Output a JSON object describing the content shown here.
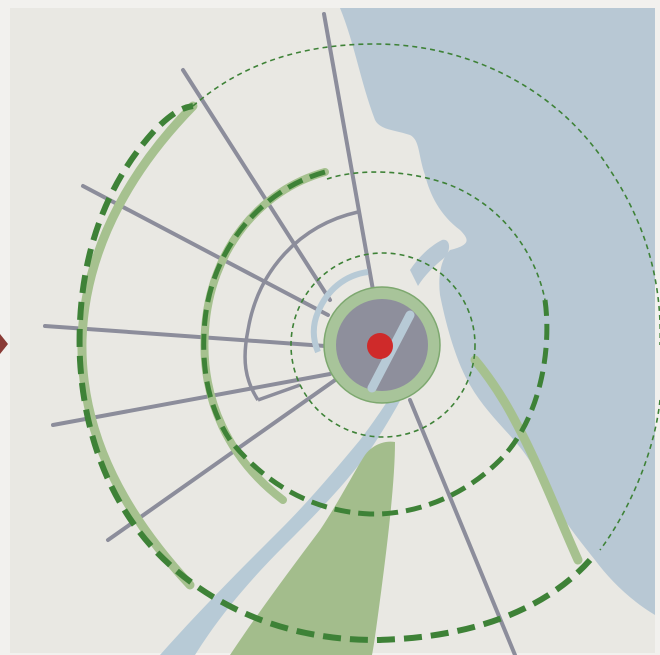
{
  "map": {
    "colors": {
      "background": "#e9e8e3",
      "frame": "#f2f1ee",
      "water": "#b8c8d4",
      "river": "#b7cad6",
      "park": "#a3bd8c",
      "road": "#8c8d9b",
      "ring_dashed": "#3e8237",
      "arc_light_green": "#a6c18f",
      "arc_dark_green": "#3e8237",
      "center_disk_outer": "#a8c49a",
      "center_disk_inner": "#8e8f9c",
      "center_dot": "#cf2a2a",
      "edge_marker": "#8a3b36"
    },
    "layers": [
      "coastline-water",
      "river",
      "park",
      "radial-roads",
      "concentric-ring-roads",
      "dashed-distance-rings",
      "green-belt-arcs",
      "center-hub",
      "center-marker"
    ],
    "icons": {
      "center_marker": "red-dot-icon",
      "edge_marker": "left-arrow-marker-icon"
    }
  }
}
